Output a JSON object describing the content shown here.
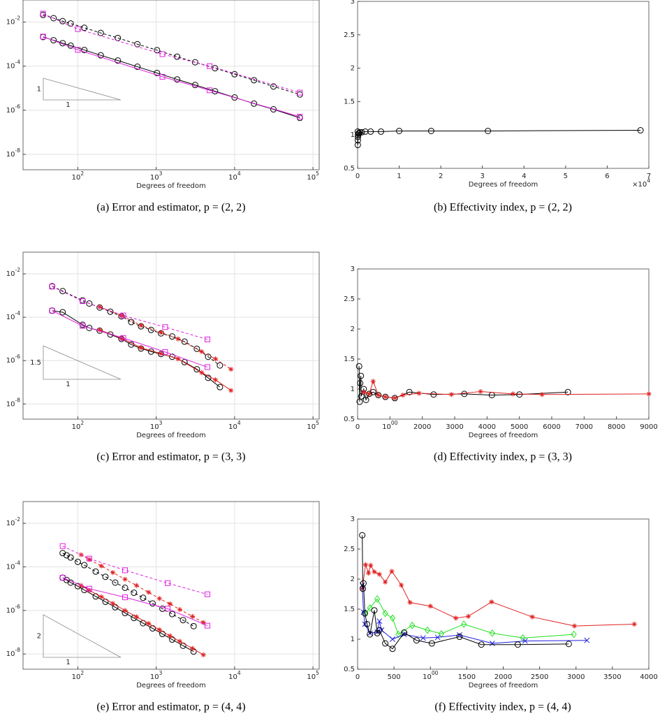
{
  "chart_data": [
    {
      "type": "line",
      "caption": "(a) Error and estimator, p = (2, 2)",
      "xlabel": "Degrees of freedom",
      "xscale": "log",
      "yscale": "log",
      "grid": true,
      "xlim": [
        20,
        120000
      ],
      "ylim": [
        2e-09,
        0.1
      ],
      "xticks": [
        {
          "value": 100,
          "label": "102"
        },
        {
          "value": 1000,
          "label": "103"
        },
        {
          "value": 10000,
          "label": "104"
        },
        {
          "value": 100000,
          "label": "105"
        }
      ],
      "yticks": [
        {
          "value": 0.01,
          "label": "10-2"
        },
        {
          "value": 0.0001,
          "label": "10-4"
        },
        {
          "value": 1e-06,
          "label": "10-6"
        },
        {
          "value": 1e-08,
          "label": "10-8"
        }
      ],
      "annotations": {
        "rise": "1",
        "run": "1"
      },
      "series": [
        {
          "color": "#000000",
          "marker": "circle",
          "dashed": false,
          "x": [
            36,
            49,
            64,
            81,
            121,
            196,
            324,
            576,
            1024,
            1849,
            3136,
            5625,
            10000,
            17689,
            31329,
            68000
          ],
          "values": [
            0.0021,
            0.0015,
            0.0011,
            0.00085,
            0.00054,
            0.00031,
            0.00018,
            9.4e-05,
            4.9e-05,
            2.5e-05,
            1.4e-05,
            7.3e-06,
            3.8e-06,
            2e-06,
            1.1e-06,
            4.5e-07
          ]
        },
        {
          "color": "#000000",
          "marker": "circle",
          "dashed": true,
          "x": [
            36,
            49,
            64,
            81,
            121,
            196,
            324,
            576,
            1024,
            1849,
            3136,
            5625,
            10000,
            17689,
            31329,
            68000
          ],
          "values": [
            0.021,
            0.015,
            0.011,
            0.0086,
            0.0055,
            0.0032,
            0.0019,
            0.00099,
            0.00053,
            0.00027,
            0.00015,
            8.1e-05,
            4.3e-05,
            2.3e-05,
            1.2e-05,
            5.2e-06
          ]
        },
        {
          "color": "#e020e0",
          "marker": "square",
          "dashed": false,
          "x": [
            36,
            100,
            1200,
            4800,
            68000
          ],
          "values": [
            0.0022,
            0.00055,
            3.3e-05,
            8e-06,
            5.1e-07
          ]
        },
        {
          "color": "#e020e0",
          "marker": "square",
          "dashed": true,
          "x": [
            36,
            100,
            1200,
            4800,
            68000
          ],
          "values": [
            0.024,
            0.0048,
            0.00035,
            0.0001,
            6.3e-06
          ]
        }
      ]
    },
    {
      "type": "line",
      "caption": "(b) Effectivity index, p = (2, 2)",
      "xlabel": "Degrees of freedom",
      "x_offset_label": "×104",
      "grid": false,
      "xlim": [
        0,
        70000
      ],
      "ylim": [
        0.5,
        3
      ],
      "xticks": [
        0,
        {
          "value": 10000,
          "label": "1"
        },
        {
          "value": 20000,
          "label": "2"
        },
        {
          "value": 30000,
          "label": "3"
        },
        {
          "value": 40000,
          "label": "4"
        },
        {
          "value": 50000,
          "label": "5"
        },
        {
          "value": 60000,
          "label": "6"
        },
        {
          "value": 70000,
          "label": "7"
        }
      ],
      "yticks": [
        0.5,
        1,
        1.5,
        2,
        2.5,
        3
      ],
      "series": [
        {
          "color": "#000000",
          "marker": "circle",
          "dashed": false,
          "x": [
            36,
            49,
            64,
            81,
            121,
            196,
            324,
            576,
            1024,
            1849,
            3136,
            5625,
            10000,
            17689,
            31329,
            68000
          ],
          "values": [
            1.05,
            0.85,
            0.92,
            0.97,
            1.0,
            1.02,
            1.03,
            1.04,
            1.04,
            1.05,
            1.05,
            1.05,
            1.06,
            1.06,
            1.06,
            1.07
          ]
        }
      ]
    },
    {
      "type": "line",
      "caption": "(c) Error and estimator, p = (3, 3)",
      "xlabel": "Degrees of freedom",
      "xscale": "log",
      "yscale": "log",
      "grid": true,
      "xlim": [
        20,
        120000
      ],
      "ylim": [
        2e-09,
        0.1
      ],
      "xticks": [
        {
          "value": 100,
          "label": "102"
        },
        {
          "value": 1000,
          "label": "103"
        },
        {
          "value": 10000,
          "label": "104"
        },
        {
          "value": 100000,
          "label": "105"
        }
      ],
      "yticks": [
        {
          "value": 0.01,
          "label": "10-2"
        },
        {
          "value": 0.0001,
          "label": "10-4"
        },
        {
          "value": 1e-06,
          "label": "10-6"
        },
        {
          "value": 1e-08,
          "label": "10-8"
        }
      ],
      "annotations": {
        "rise": "1.5",
        "run": "1"
      },
      "series": [
        {
          "color": "#000000",
          "marker": "circle",
          "dashed": false,
          "x": [
            47,
            64,
            115,
            140,
            190,
            260,
            360,
            480,
            640,
            860,
            1150,
            1600,
            2300,
            3300,
            4600,
            6500
          ],
          "values": [
            0.0002,
            0.00017,
            4.5e-05,
            3.2e-05,
            2.4e-05,
            1.6e-05,
            1e-05,
            5.5e-06,
            3.6e-06,
            2.6e-06,
            2e-06,
            1.5e-06,
            8.5e-07,
            4e-07,
            1.6e-07,
            6e-08
          ]
        },
        {
          "color": "#000000",
          "marker": "circle",
          "dashed": true,
          "x": [
            47,
            64,
            115,
            140,
            190,
            260,
            360,
            480,
            640,
            860,
            1150,
            1600,
            2300,
            3300,
            4600,
            6500
          ],
          "values": [
            0.0027,
            0.0016,
            0.0006,
            0.00043,
            0.00028,
            0.00018,
            0.00011,
            6e-05,
            3.8e-05,
            2.6e-05,
            1.8e-05,
            1.3e-05,
            7.5e-06,
            3.5e-06,
            1.5e-06,
            6e-07
          ]
        },
        {
          "color": "#e02020",
          "marker": "star",
          "dashed": false,
          "x": [
            190,
            360,
            640,
            1150,
            1900,
            3800,
            5700,
            9000
          ],
          "values": [
            2.6e-05,
            1.1e-05,
            3.9e-06,
            2.1e-06,
            1.2e-06,
            2.8e-07,
            1.3e-07,
            4.2e-08
          ]
        },
        {
          "color": "#e02020",
          "marker": "star",
          "dashed": true,
          "x": [
            190,
            360,
            640,
            1150,
            1900,
            3800,
            5700,
            9000
          ],
          "values": [
            0.0003,
            0.00012,
            4.2e-05,
            2e-05,
            1e-05,
            2.6e-06,
            1.2e-06,
            4e-07
          ]
        },
        {
          "color": "#e020e0",
          "marker": "square",
          "dashed": false,
          "x": [
            47,
            115,
            380,
            1300,
            4500
          ],
          "values": [
            0.0002,
            4e-05,
            1.1e-05,
            2.5e-06,
            5e-07
          ]
        },
        {
          "color": "#e020e0",
          "marker": "square",
          "dashed": true,
          "x": [
            47,
            115,
            380,
            1300,
            4500
          ],
          "values": [
            0.0026,
            0.00055,
            0.00012,
            3.5e-05,
            9.5e-06
          ]
        }
      ]
    },
    {
      "type": "line",
      "caption": "(d) Effectivity index, p = (3, 3)",
      "xlabel": "Degrees of freedom",
      "grid": false,
      "xlim": [
        0,
        9000
      ],
      "ylim": [
        0.5,
        3
      ],
      "xticks": [
        0,
        1000,
        2000,
        3000,
        4000,
        5000,
        6000,
        7000,
        8000,
        9000
      ],
      "yticks": [
        0.5,
        1,
        1.5,
        2,
        2.5,
        3
      ],
      "series": [
        {
          "color": "#000000",
          "marker": "circle",
          "dashed": false,
          "x": [
            47,
            64,
            80,
            100,
            115,
            190,
            260,
            360,
            480,
            640,
            860,
            1150,
            1600,
            2350,
            3300,
            4150,
            5000,
            6500
          ],
          "values": [
            1.38,
            0.79,
            1.1,
            1.22,
            0.88,
            1.0,
            0.82,
            0.92,
            0.95,
            0.9,
            0.87,
            0.85,
            0.95,
            0.91,
            0.92,
            0.9,
            0.91,
            0.95
          ]
        },
        {
          "color": "#e02020",
          "marker": "star",
          "dashed": false,
          "x": [
            190,
            360,
            480,
            640,
            860,
            1150,
            1400,
            1900,
            2900,
            3800,
            4800,
            5700,
            9000
          ],
          "values": [
            0.95,
            0.92,
            1.13,
            0.9,
            0.87,
            0.85,
            0.9,
            0.93,
            0.91,
            0.96,
            0.92,
            0.91,
            0.92
          ]
        }
      ]
    },
    {
      "type": "line",
      "caption": "(e) Error and estimator, p = (4, 4)",
      "xlabel": "Degrees of freedom",
      "xscale": "log",
      "yscale": "log",
      "grid": true,
      "xlim": [
        20,
        120000
      ],
      "ylim": [
        2e-09,
        0.1
      ],
      "xticks": [
        {
          "value": 100,
          "label": "102"
        },
        {
          "value": 1000,
          "label": "103"
        },
        {
          "value": 10000,
          "label": "104"
        },
        {
          "value": 100000,
          "label": "105"
        }
      ],
      "yticks": [
        {
          "value": 0.01,
          "label": "10-2"
        },
        {
          "value": 0.0001,
          "label": "10-4"
        },
        {
          "value": 1e-06,
          "label": "10-6"
        },
        {
          "value": 1e-08,
          "label": "10-8"
        }
      ],
      "annotations": {
        "rise": "2",
        "run": "1"
      },
      "series": [
        {
          "color": "#000000",
          "marker": "circle",
          "dashed": false,
          "x": [
            64,
            72,
            81,
            100,
            121,
            169,
            225,
            300,
            400,
            520,
            680,
            900,
            1200,
            1600,
            2200,
            3000
          ],
          "values": [
            3.2e-05,
            2.5e-05,
            1.9e-05,
            1.3e-05,
            8.7e-06,
            4.4e-06,
            2.5e-06,
            1.4e-06,
            7.6e-07,
            4.5e-07,
            2.6e-07,
            1.5e-07,
            8.3e-08,
            4.6e-08,
            2.4e-08,
            1.3e-08
          ]
        },
        {
          "color": "#000000",
          "marker": "circle",
          "dashed": true,
          "x": [
            64,
            72,
            81,
            100,
            121,
            169,
            225,
            300,
            400,
            520,
            680,
            900,
            1200,
            1600,
            2200,
            3000
          ],
          "values": [
            0.00043,
            0.00034,
            0.00027,
            0.00017,
            0.00012,
            6.1e-05,
            3.5e-05,
            1.9e-05,
            1.1e-05,
            6.5e-06,
            3.8e-06,
            2.1e-06,
            1.2e-06,
            6.8e-07,
            3.6e-07,
            1.9e-07
          ]
        },
        {
          "color": "#e02020",
          "marker": "star",
          "dashed": false,
          "x": [
            110,
            140,
            200,
            280,
            400,
            560,
            800,
            1100,
            1500,
            2000,
            2900,
            4000
          ],
          "values": [
            1.4e-05,
            8.3e-06,
            4.2e-06,
            2.1e-06,
            9.9e-07,
            5.1e-07,
            2.5e-07,
            1.3e-07,
            6.8e-08,
            3.8e-08,
            1.8e-08,
            9.2e-09
          ]
        },
        {
          "color": "#e02020",
          "marker": "star",
          "dashed": true,
          "x": [
            110,
            140,
            200,
            280,
            400,
            560,
            800,
            1100,
            1500,
            2000,
            2900,
            4000
          ],
          "values": [
            0.00036,
            0.00022,
            0.00011,
            5.5e-05,
            2.7e-05,
            1.4e-05,
            6.8e-06,
            3.5e-06,
            2e-06,
            1.1e-06,
            5.3e-07,
            2.8e-07
          ]
        },
        {
          "color": "#e020e0",
          "marker": "square",
          "dashed": false,
          "x": [
            64,
            140,
            400,
            1400,
            4500
          ],
          "values": [
            3.2e-05,
            1e-05,
            4e-06,
            1.2e-06,
            2e-07
          ]
        },
        {
          "color": "#e020e0",
          "marker": "square",
          "dashed": true,
          "x": [
            64,
            140,
            400,
            1400,
            4500
          ],
          "values": [
            0.0009,
            0.00024,
            7e-05,
            1.8e-05,
            5.5e-06
          ]
        }
      ]
    },
    {
      "type": "line",
      "caption": "(f) Effectivity index, p = (4, 4)",
      "xlabel": "Degrees of freedom",
      "grid": false,
      "xlim": [
        0,
        4000
      ],
      "ylim": [
        0.5,
        3
      ],
      "xticks": [
        0,
        500,
        1000,
        1500,
        2000,
        2500,
        3000,
        3500,
        4000
      ],
      "yticks": [
        0.5,
        1,
        1.5,
        2,
        2.5,
        3
      ],
      "series": [
        {
          "color": "#e02020",
          "marker": "star",
          "dashed": false,
          "x": [
            64,
            110,
            150,
            180,
            230,
            300,
            380,
            470,
            600,
            720,
            1000,
            1350,
            1520,
            1840,
            2400,
            2980,
            3800
          ],
          "values": [
            1.84,
            2.24,
            2.1,
            2.23,
            2.12,
            2.08,
            1.95,
            2.13,
            1.9,
            1.61,
            1.55,
            1.35,
            1.38,
            1.62,
            1.37,
            1.22,
            1.25
          ]
        },
        {
          "color": "#20e020",
          "marker": "diamond",
          "dashed": false,
          "x": [
            100,
            170,
            270,
            380,
            480,
            560,
            750,
            960,
            1150,
            1460,
            1850,
            2270,
            2970
          ],
          "values": [
            1.43,
            1.52,
            1.67,
            1.43,
            1.35,
            1.08,
            1.23,
            1.15,
            1.09,
            1.25,
            1.1,
            1.02,
            1.08
          ]
        },
        {
          "color": "#2020e0",
          "marker": "x",
          "dashed": false,
          "x": [
            64,
            81,
            100,
            170,
            270,
            300,
            330,
            480,
            640,
            900,
            1100,
            1400,
            1850,
            2300,
            3150
          ],
          "values": [
            1.9,
            1.45,
            1.25,
            1.1,
            1.12,
            1.3,
            1.15,
            1.0,
            1.08,
            1.02,
            1.03,
            1.07,
            0.93,
            0.97,
            0.98
          ]
        },
        {
          "color": "#000000",
          "marker": "circle",
          "dashed": false,
          "x": [
            64,
            72,
            81,
            100,
            130,
            170,
            230,
            270,
            300,
            380,
            480,
            640,
            810,
            1020,
            1400,
            1700,
            2200,
            2900
          ],
          "values": [
            2.73,
            1.84,
            1.93,
            1.43,
            1.25,
            1.08,
            1.48,
            1.1,
            1.15,
            0.93,
            0.84,
            1.11,
            0.98,
            0.93,
            1.04,
            0.91,
            0.91,
            0.92
          ]
        }
      ]
    }
  ]
}
